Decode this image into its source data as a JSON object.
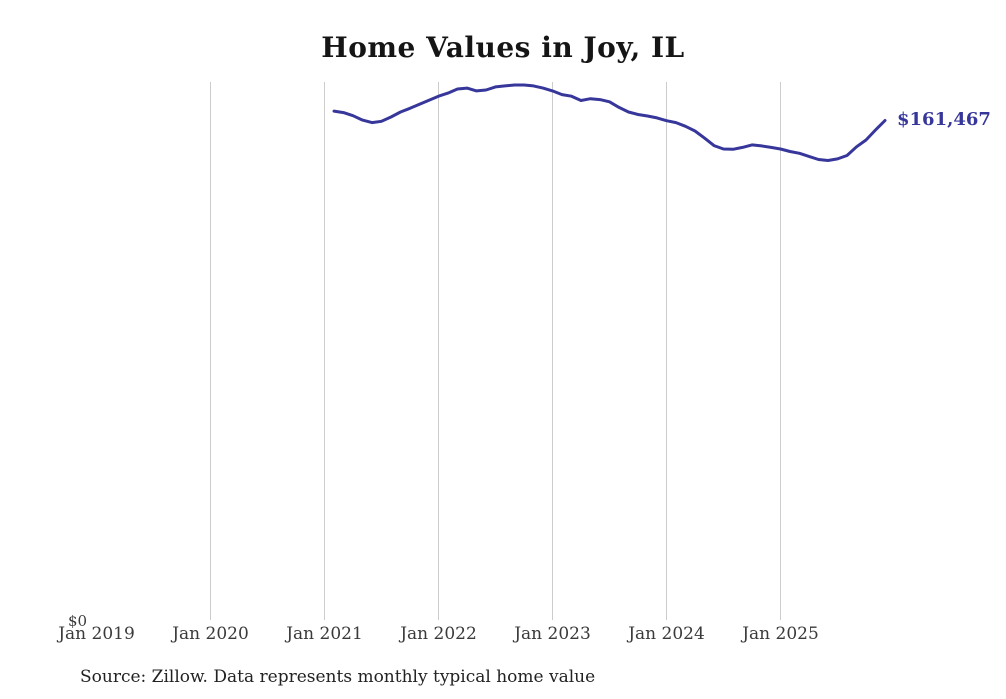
{
  "title": "Home Values in Joy, IL",
  "end_label": "$161,467",
  "y_axis": {
    "zero_label": "$0"
  },
  "x_axis": {
    "tick_labels": [
      "Jan 2019",
      "Jan 2020",
      "Jan 2021",
      "Jan 2022",
      "Jan 2023",
      "Jan 2024",
      "Jan 2025"
    ],
    "gridline_years": [
      2020,
      2021,
      2022,
      2023,
      2024,
      2025
    ]
  },
  "source_note": "Source: Zillow. Data represents monthly typical home value",
  "colors": {
    "line": "#37379b",
    "grid": "#cccccc",
    "title": "#151515",
    "tick": "#3a3a3a",
    "source": "#222222",
    "background": "#ffffff"
  },
  "chart_data": {
    "type": "line",
    "title": "Home Values in Joy, IL",
    "series_name": "Monthly typical home value (USD)",
    "xlabel": "",
    "ylabel": "",
    "ylim": [
      0,
      175000
    ],
    "x_range_shown": [
      "Jan 2019",
      "Dec 2025"
    ],
    "grid": "vertical-only",
    "legend": "none",
    "last_point_label": "$161,467",
    "x": [
      "2021-01",
      "2021-02",
      "2021-03",
      "2021-04",
      "2021-05",
      "2021-06",
      "2021-07",
      "2021-08",
      "2021-09",
      "2021-10",
      "2021-11",
      "2021-12",
      "2022-01",
      "2022-02",
      "2022-03",
      "2022-04",
      "2022-05",
      "2022-06",
      "2022-07",
      "2022-08",
      "2022-09",
      "2022-10",
      "2022-11",
      "2022-12",
      "2023-01",
      "2023-02",
      "2023-03",
      "2023-04",
      "2023-05",
      "2023-06",
      "2023-07",
      "2023-08",
      "2023-09",
      "2023-10",
      "2023-11",
      "2023-12",
      "2024-01",
      "2024-02",
      "2024-03",
      "2024-04",
      "2024-05",
      "2024-06",
      "2024-07",
      "2024-08",
      "2024-09",
      "2024-10",
      "2024-11",
      "2024-12",
      "2025-01",
      "2025-02",
      "2025-03",
      "2025-04",
      "2025-05",
      "2025-06",
      "2025-07",
      "2025-08",
      "2025-09",
      "2025-10",
      "2025-11"
    ],
    "values": [
      164500,
      164000,
      163000,
      161600,
      160800,
      161200,
      162600,
      164200,
      165400,
      166700,
      168000,
      169300,
      170300,
      171600,
      171900,
      171000,
      171300,
      172300,
      172600,
      172900,
      172900,
      172600,
      171900,
      171000,
      169800,
      169300,
      167900,
      168500,
      168200,
      167500,
      165700,
      164200,
      163400,
      162900,
      162300,
      161400,
      160800,
      159600,
      158100,
      155800,
      153400,
      152300,
      152200,
      152800,
      153600,
      153300,
      152800,
      152300,
      151500,
      150900,
      149900,
      148900,
      148600,
      149100,
      150200,
      153000,
      155200,
      158400,
      161467
    ]
  }
}
